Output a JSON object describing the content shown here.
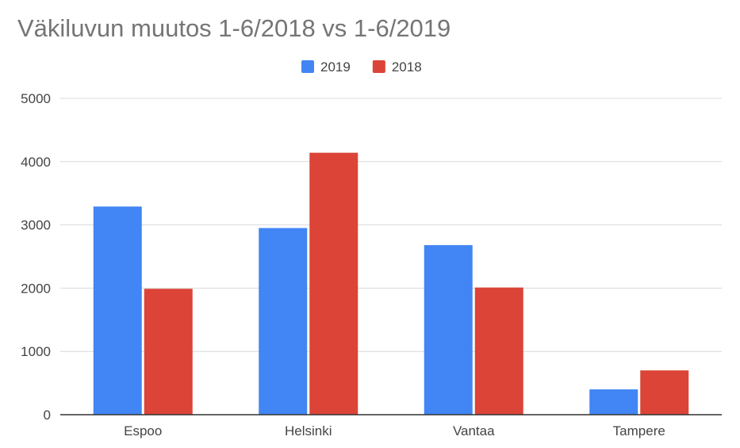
{
  "chart_data": {
    "type": "bar",
    "title": "Väkiluvun muutos 1-6/2018 vs 1-6/2019",
    "xlabel": "",
    "ylabel": "",
    "categories": [
      "Espoo",
      "Helsinki",
      "Vantaa",
      "Tampere"
    ],
    "series": [
      {
        "name": "2019",
        "color": "#4285f4",
        "values": [
          3290,
          2950,
          2680,
          400
        ]
      },
      {
        "name": "2018",
        "color": "#db4437",
        "values": [
          1990,
          4140,
          2010,
          700
        ]
      }
    ],
    "ylim": [
      0,
      5000
    ],
    "yticks": [
      "0",
      "1000",
      "2000",
      "3000",
      "4000",
      "5000"
    ],
    "ytick_values": [
      0,
      1000,
      2000,
      3000,
      4000,
      5000
    ],
    "grid": true,
    "legend": "top-center"
  }
}
